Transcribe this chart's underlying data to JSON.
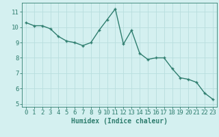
{
  "x": [
    0,
    1,
    2,
    3,
    4,
    5,
    6,
    7,
    8,
    9,
    10,
    11,
    12,
    13,
    14,
    15,
    16,
    17,
    18,
    19,
    20,
    21,
    22,
    23
  ],
  "y": [
    10.3,
    10.1,
    10.1,
    9.9,
    9.4,
    9.1,
    9.0,
    8.8,
    9.0,
    9.8,
    10.5,
    11.2,
    8.9,
    9.8,
    8.3,
    7.9,
    8.0,
    8.0,
    7.3,
    6.7,
    6.6,
    6.4,
    5.7,
    5.3
  ],
  "line_color": "#2e7d6e",
  "marker": "+",
  "background_color": "#d4f0f0",
  "grid_color": "#b8dede",
  "xlabel": "Humidex (Indice chaleur)",
  "ylim": [
    4.8,
    11.6
  ],
  "xlim": [
    -0.5,
    23.5
  ],
  "yticks": [
    5,
    6,
    7,
    8,
    9,
    10,
    11
  ],
  "xticks": [
    0,
    1,
    2,
    3,
    4,
    5,
    6,
    7,
    8,
    9,
    10,
    11,
    12,
    13,
    14,
    15,
    16,
    17,
    18,
    19,
    20,
    21,
    22,
    23
  ],
  "tick_color": "#2e7d6e",
  "label_color": "#2e7d6e",
  "xlabel_fontsize": 7,
  "tick_fontsize": 6.5,
  "linewidth": 1.0,
  "markersize": 3.5,
  "markeredgewidth": 1.0
}
